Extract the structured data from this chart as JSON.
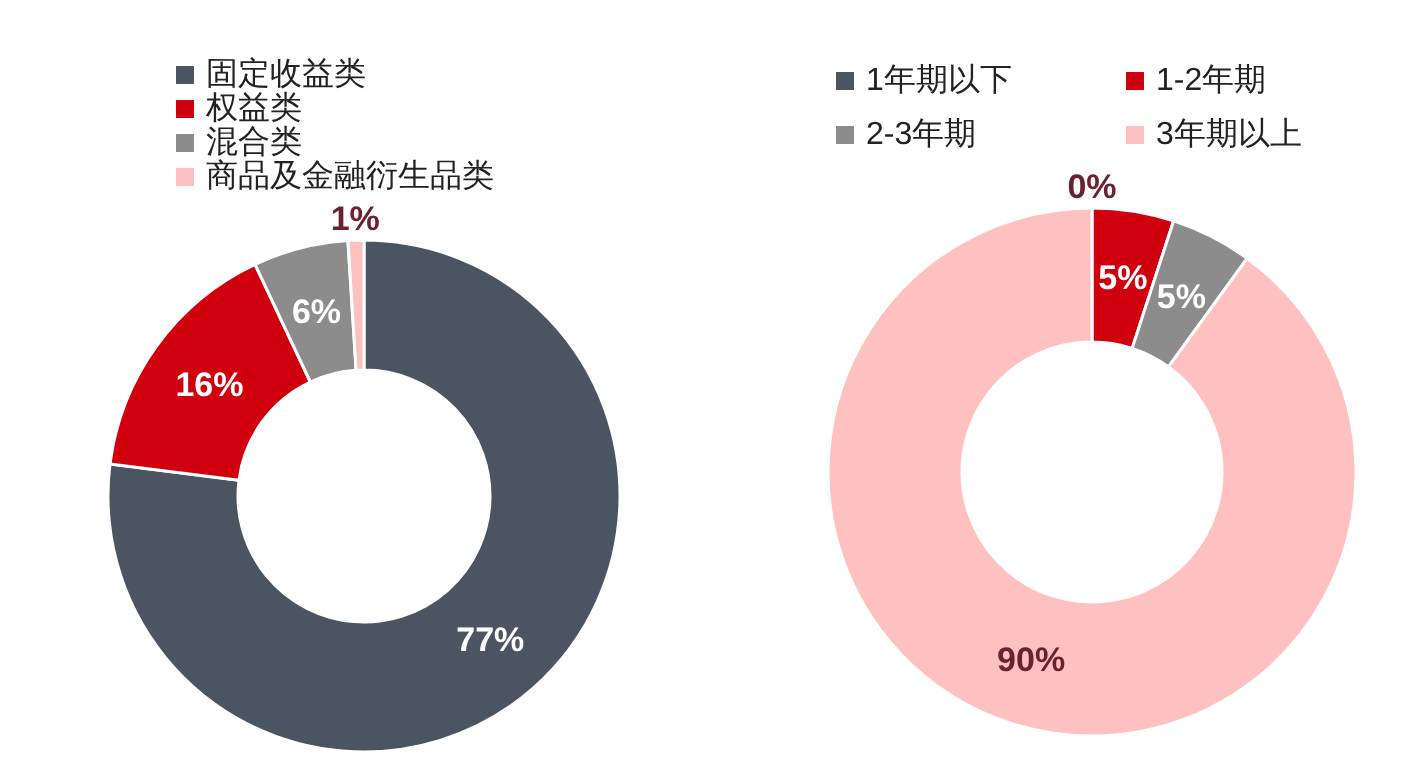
{
  "chart_data": [
    {
      "type": "donut",
      "categories": [
        "固定收益类",
        "权益类",
        "混合类",
        "商品及金融衍生品类"
      ],
      "values": [
        77,
        16,
        6,
        1
      ],
      "colors": [
        "#4b5461",
        "#d0000f",
        "#8c8c8c",
        "#ffc0c0"
      ],
      "value_labels": [
        "77%",
        "16%",
        "6%",
        "1%"
      ],
      "legend": "top"
    },
    {
      "type": "donut",
      "categories": [
        "1年期以下",
        "1-2年期",
        "2-3年期",
        "3年期以上"
      ],
      "values": [
        0,
        5,
        5,
        90
      ],
      "colors": [
        "#4b5461",
        "#d0000f",
        "#8c8c8c",
        "#ffc0c0"
      ],
      "value_labels": [
        "0%",
        "5%",
        "5%",
        "90%"
      ],
      "legend": "top"
    }
  ]
}
